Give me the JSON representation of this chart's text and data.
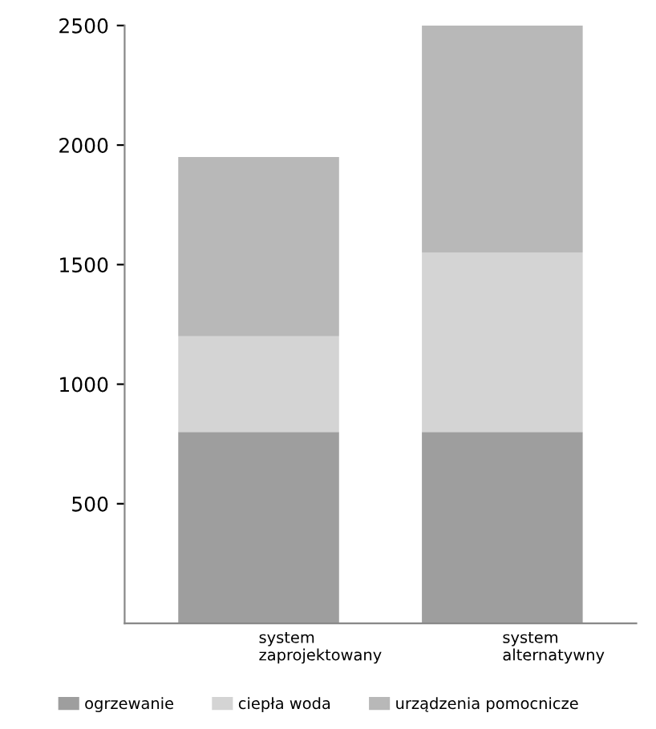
{
  "chart_data": {
    "type": "bar",
    "stacked": true,
    "categories": [
      "system\nzaprojektowany",
      "system\nalternatywny"
    ],
    "series": [
      {
        "name": "ogrzewanie",
        "color": "#9e9e9e",
        "values": [
          800,
          800
        ]
      },
      {
        "name": "ciepła woda",
        "color": "#d4d4d4",
        "values": [
          400,
          750
        ]
      },
      {
        "name": "urządzenia pomocnicze",
        "color": "#b8b8b8",
        "values": [
          750,
          950
        ]
      }
    ],
    "ylim": [
      0,
      2500
    ],
    "yticks": [
      500,
      1000,
      1500,
      2000,
      2500
    ],
    "grid": false,
    "legend": "bottom"
  }
}
